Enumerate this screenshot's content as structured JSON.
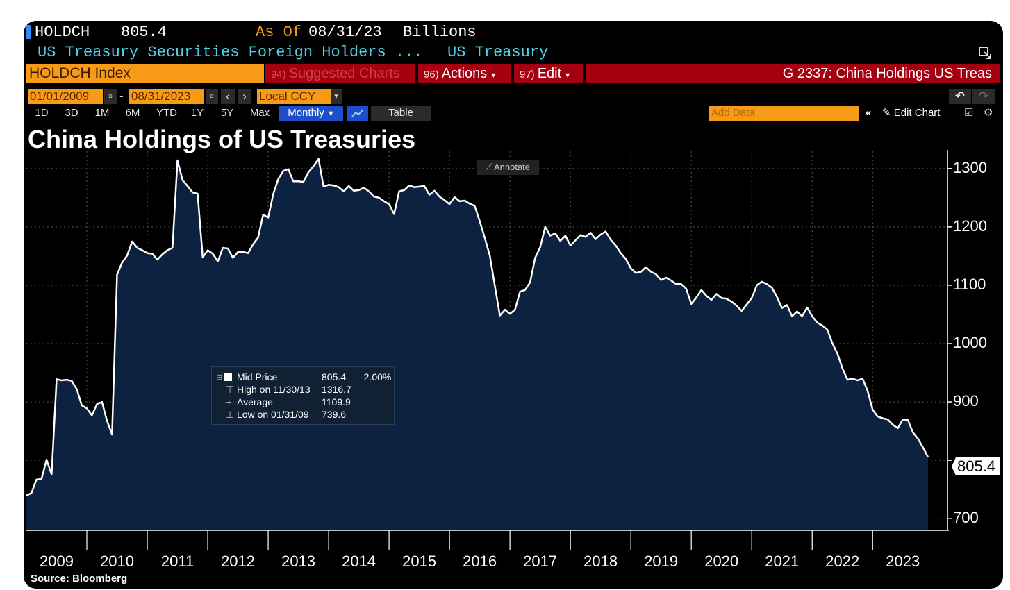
{
  "header": {
    "ticker": "HOLDCH",
    "value": "805.4",
    "as_of_label": "As Of",
    "as_of_date": "08/31/23",
    "units": "Billions",
    "description": "US Treasury Securities Foreign Holders ...",
    "category": "US Treasury"
  },
  "toolbar": {
    "security": "HOLDCH Index",
    "suggested_num": "94)",
    "suggested_label": "Suggested Charts",
    "actions_num": "96)",
    "actions_label": "Actions",
    "edit_num": "97)",
    "edit_label": "Edit",
    "chart_id": "G 2337: China Holdings US Treas"
  },
  "date_range": {
    "start": "01/01/2009",
    "dash": "-",
    "end": "08/31/2023",
    "currency": "Local CCY"
  },
  "periods": [
    "1D",
    "3D",
    "1M",
    "6M",
    "YTD",
    "1Y",
    "5Y",
    "Max"
  ],
  "frequency": "Monthly",
  "table_label": "Table",
  "add_data_placeholder": "Add Data",
  "edit_chart_label": "Edit Chart",
  "annotate_label": "Annotate",
  "legend": {
    "title": "Mid Price",
    "last": "805.4",
    "change": "-2.00%",
    "high_label": "High on 11/30/13",
    "high_value": "1316.7",
    "avg_label": "Average",
    "avg_value": "1109.9",
    "low_label": "Low on 01/31/09",
    "low_value": "739.6"
  },
  "last_value_label": "805.4",
  "source": "Source: Bloomberg",
  "colors": {
    "background": "#000000",
    "area_fill": "#0d2240",
    "line": "#ffffff",
    "orange": "#f79a18",
    "red_bar": "#a50010",
    "cyan_text": "#4fd1e8"
  },
  "chart_data": {
    "type": "area",
    "title": "China Holdings of US Treasuries",
    "ylim": [
      680,
      1320
    ],
    "yticks": [
      700,
      800,
      900,
      1000,
      1100,
      1200,
      1300
    ],
    "ytick_labels": [
      "700",
      "",
      "900",
      "1000",
      "1100",
      "1200",
      "1300"
    ],
    "xticks": [
      "2009",
      "2010",
      "2011",
      "2012",
      "2013",
      "2014",
      "2015",
      "2016",
      "2017",
      "2018",
      "2019",
      "2020",
      "2021",
      "2022",
      "2023"
    ],
    "grid": true,
    "x_start": "2009-01",
    "series": [
      {
        "values": [
          739.6,
          744,
          767,
          768,
          801,
          776,
          939,
          937,
          938,
          936,
          922,
          894,
          889,
          877,
          896,
          900,
          868,
          844,
          1118,
          1139,
          1151,
          1175,
          1164,
          1160,
          1155,
          1154,
          1144,
          1153,
          1160,
          1164,
          1314,
          1280,
          1270,
          1259,
          1257,
          1148,
          1160,
          1154,
          1141,
          1164,
          1163,
          1147,
          1157,
          1157,
          1155,
          1170,
          1182,
          1221,
          1216,
          1256,
          1282,
          1296,
          1299,
          1278,
          1278,
          1277,
          1294,
          1304,
          1316.7,
          1269,
          1272,
          1271,
          1268,
          1261,
          1270,
          1262,
          1263,
          1267,
          1261,
          1252,
          1250,
          1244,
          1239,
          1222,
          1261,
          1263,
          1271,
          1268,
          1269,
          1270,
          1255,
          1262,
          1252,
          1246,
          1239,
          1251,
          1244,
          1245,
          1240,
          1236,
          1210,
          1181,
          1151,
          1099,
          1048,
          1058,
          1051,
          1058,
          1089,
          1092,
          1105,
          1147,
          1165,
          1200,
          1185,
          1189,
          1176,
          1185,
          1168,
          1177,
          1186,
          1183,
          1190,
          1179,
          1187,
          1192,
          1178,
          1168,
          1155,
          1145,
          1129,
          1121,
          1123,
          1131,
          1123,
          1119,
          1109,
          1113,
          1108,
          1102,
          1102,
          1094,
          1068,
          1079,
          1092,
          1082,
          1075,
          1085,
          1078,
          1077,
          1072,
          1065,
          1056,
          1067,
          1078,
          1100,
          1106,
          1102,
          1096,
          1080,
          1061,
          1066,
          1047,
          1055,
          1047,
          1062,
          1047,
          1036,
          1031,
          1024,
          1001,
          983,
          958,
          938,
          940,
          937,
          940,
          919,
          887,
          875,
          872,
          870,
          861,
          855,
          870,
          869,
          848,
          837,
          822,
          805.4
        ]
      }
    ]
  }
}
